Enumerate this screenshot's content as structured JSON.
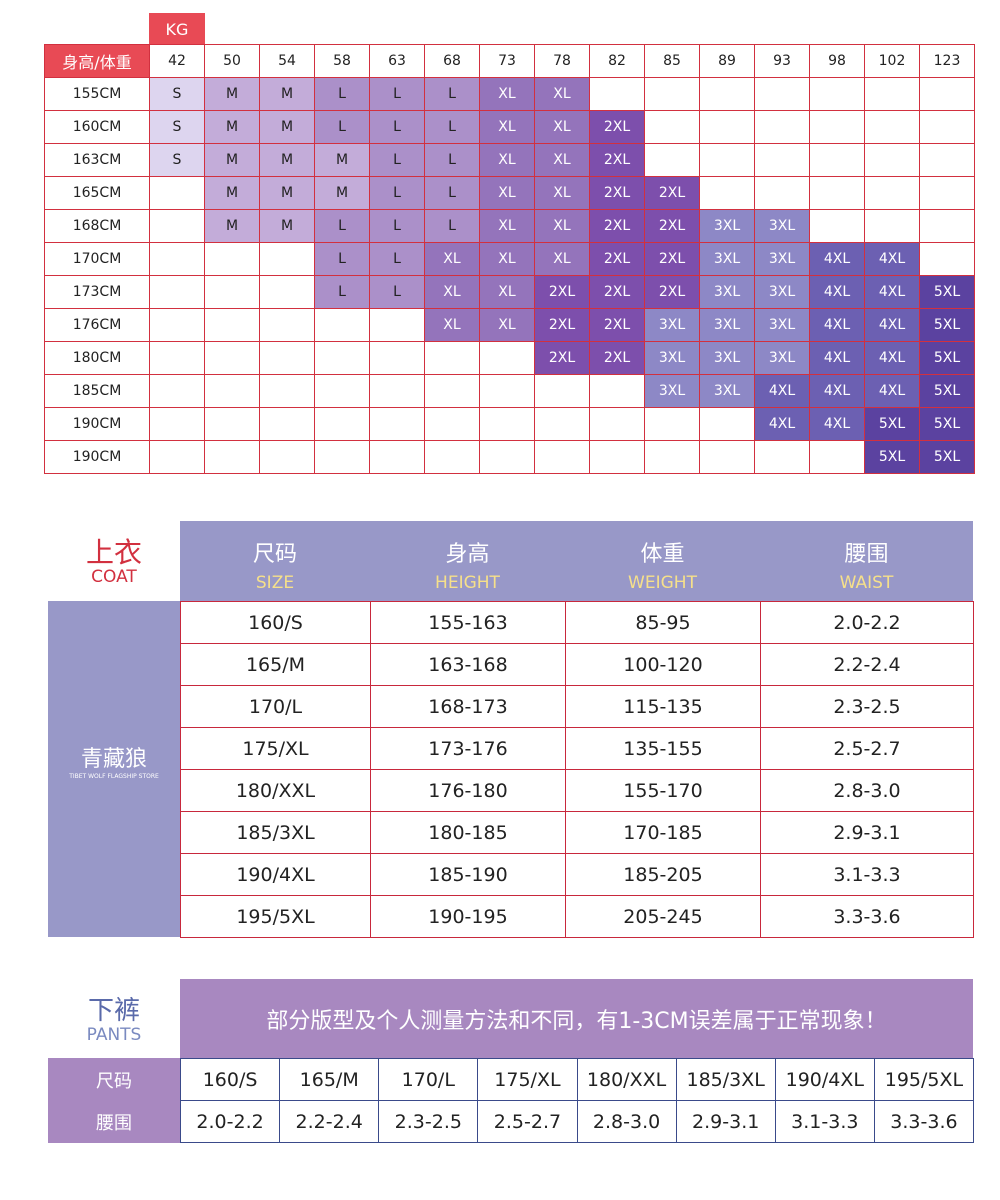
{
  "size_grid": {
    "kg_label": "KG",
    "corner": "身高/体重",
    "weights": [
      "42",
      "50",
      "54",
      "58",
      "63",
      "68",
      "73",
      "78",
      "82",
      "85",
      "89",
      "93",
      "98",
      "102",
      "123"
    ],
    "size_colors": {
      "S": "#ddd5ef",
      "M": "#c3acd9",
      "L": "#ab90c9",
      "XL": "#9474bb",
      "2XL": "#7d4fac",
      "3XL": "#8d88c6",
      "4XL": "#6c60b2",
      "5XL": "#5b42a0"
    },
    "rows": [
      {
        "height": "155CM",
        "cells": [
          "S",
          "M",
          "M",
          "L",
          "L",
          "L",
          "XL",
          "XL",
          null,
          null,
          null,
          null,
          null,
          null,
          null
        ]
      },
      {
        "height": "160CM",
        "cells": [
          "S",
          "M",
          "M",
          "L",
          "L",
          "L",
          "XL",
          "XL",
          "2XL",
          null,
          null,
          null,
          null,
          null,
          null
        ]
      },
      {
        "height": "163CM",
        "cells": [
          "S",
          "M",
          "M",
          "M",
          "L",
          "L",
          "XL",
          "XL",
          "2XL",
          null,
          null,
          null,
          null,
          null,
          null
        ]
      },
      {
        "height": "165CM",
        "cells": [
          null,
          "M",
          "M",
          "M",
          "L",
          "L",
          "XL",
          "XL",
          "2XL",
          "2XL",
          null,
          null,
          null,
          null,
          null
        ]
      },
      {
        "height": "168CM",
        "cells": [
          null,
          "M",
          "M",
          "L",
          "L",
          "L",
          "XL",
          "XL",
          "2XL",
          "2XL",
          "3XL",
          "3XL",
          null,
          null,
          null
        ]
      },
      {
        "height": "170CM",
        "cells": [
          null,
          null,
          null,
          "L",
          "L",
          "XL",
          "XL",
          "XL",
          "2XL",
          "2XL",
          "3XL",
          "3XL",
          "4XL",
          "4XL",
          null
        ]
      },
      {
        "height": "173CM",
        "cells": [
          null,
          null,
          null,
          "L",
          "L",
          "XL",
          "XL",
          "2XL",
          "2XL",
          "2XL",
          "3XL",
          "3XL",
          "4XL",
          "4XL",
          "5XL"
        ]
      },
      {
        "height": "176CM",
        "cells": [
          null,
          null,
          null,
          null,
          null,
          "XL",
          "XL",
          "2XL",
          "2XL",
          "3XL",
          "3XL",
          "3XL",
          "4XL",
          "4XL",
          "5XL"
        ]
      },
      {
        "height": "180CM",
        "cells": [
          null,
          null,
          null,
          null,
          null,
          null,
          null,
          "2XL",
          "2XL",
          "3XL",
          "3XL",
          "3XL",
          "4XL",
          "4XL",
          "5XL"
        ]
      },
      {
        "height": "185CM",
        "cells": [
          null,
          null,
          null,
          null,
          null,
          null,
          null,
          null,
          null,
          "3XL",
          "3XL",
          "4XL",
          "4XL",
          "4XL",
          "5XL"
        ]
      },
      {
        "height": "190CM",
        "cells": [
          null,
          null,
          null,
          null,
          null,
          null,
          null,
          null,
          null,
          null,
          null,
          "4XL",
          "4XL",
          "5XL",
          "5XL"
        ]
      },
      {
        "height": "190CM",
        "cells": [
          null,
          null,
          null,
          null,
          null,
          null,
          null,
          null,
          null,
          null,
          null,
          null,
          null,
          "5XL",
          "5XL"
        ]
      }
    ]
  },
  "coat": {
    "title": "上衣",
    "title_en": "COAT",
    "logo": "青藏狼",
    "logo_sub": "TIBET WOLF FLAGSHIP STORE",
    "columns": [
      {
        "zh": "尺码",
        "en": "SIZE"
      },
      {
        "zh": "身高",
        "en": "HEIGHT"
      },
      {
        "zh": "体重",
        "en": "WEIGHT"
      },
      {
        "zh": "腰围",
        "en": "WAIST"
      }
    ],
    "rows": [
      [
        "160/S",
        "155-163",
        "85-95",
        "2.0-2.2"
      ],
      [
        "165/M",
        "163-168",
        "100-120",
        "2.2-2.4"
      ],
      [
        "170/L",
        "168-173",
        "115-135",
        "2.3-2.5"
      ],
      [
        "175/XL",
        "173-176",
        "135-155",
        "2.5-2.7"
      ],
      [
        "180/XXL",
        "176-180",
        "155-170",
        "2.8-3.0"
      ],
      [
        "185/3XL",
        "180-185",
        "170-185",
        "2.9-3.1"
      ],
      [
        "190/4XL",
        "185-190",
        "185-205",
        "3.1-3.3"
      ],
      [
        "195/5XL",
        "190-195",
        "205-245",
        "3.3-3.6"
      ]
    ]
  },
  "pants": {
    "title": "下裤",
    "title_en": "PANTS",
    "note": "部分版型及个人测量方法和不同，有1-3CM误差属于正常现象！",
    "row_labels": [
      "尺码",
      "腰围"
    ],
    "sizes": [
      "160/S",
      "165/M",
      "170/L",
      "175/XL",
      "180/XXL",
      "185/3XL",
      "190/4XL",
      "195/5XL"
    ],
    "waists": [
      "2.0-2.2",
      "2.2-2.4",
      "2.3-2.5",
      "2.5-2.7",
      "2.8-3.0",
      "2.9-3.1",
      "3.1-3.3",
      "3.3-3.6"
    ]
  }
}
